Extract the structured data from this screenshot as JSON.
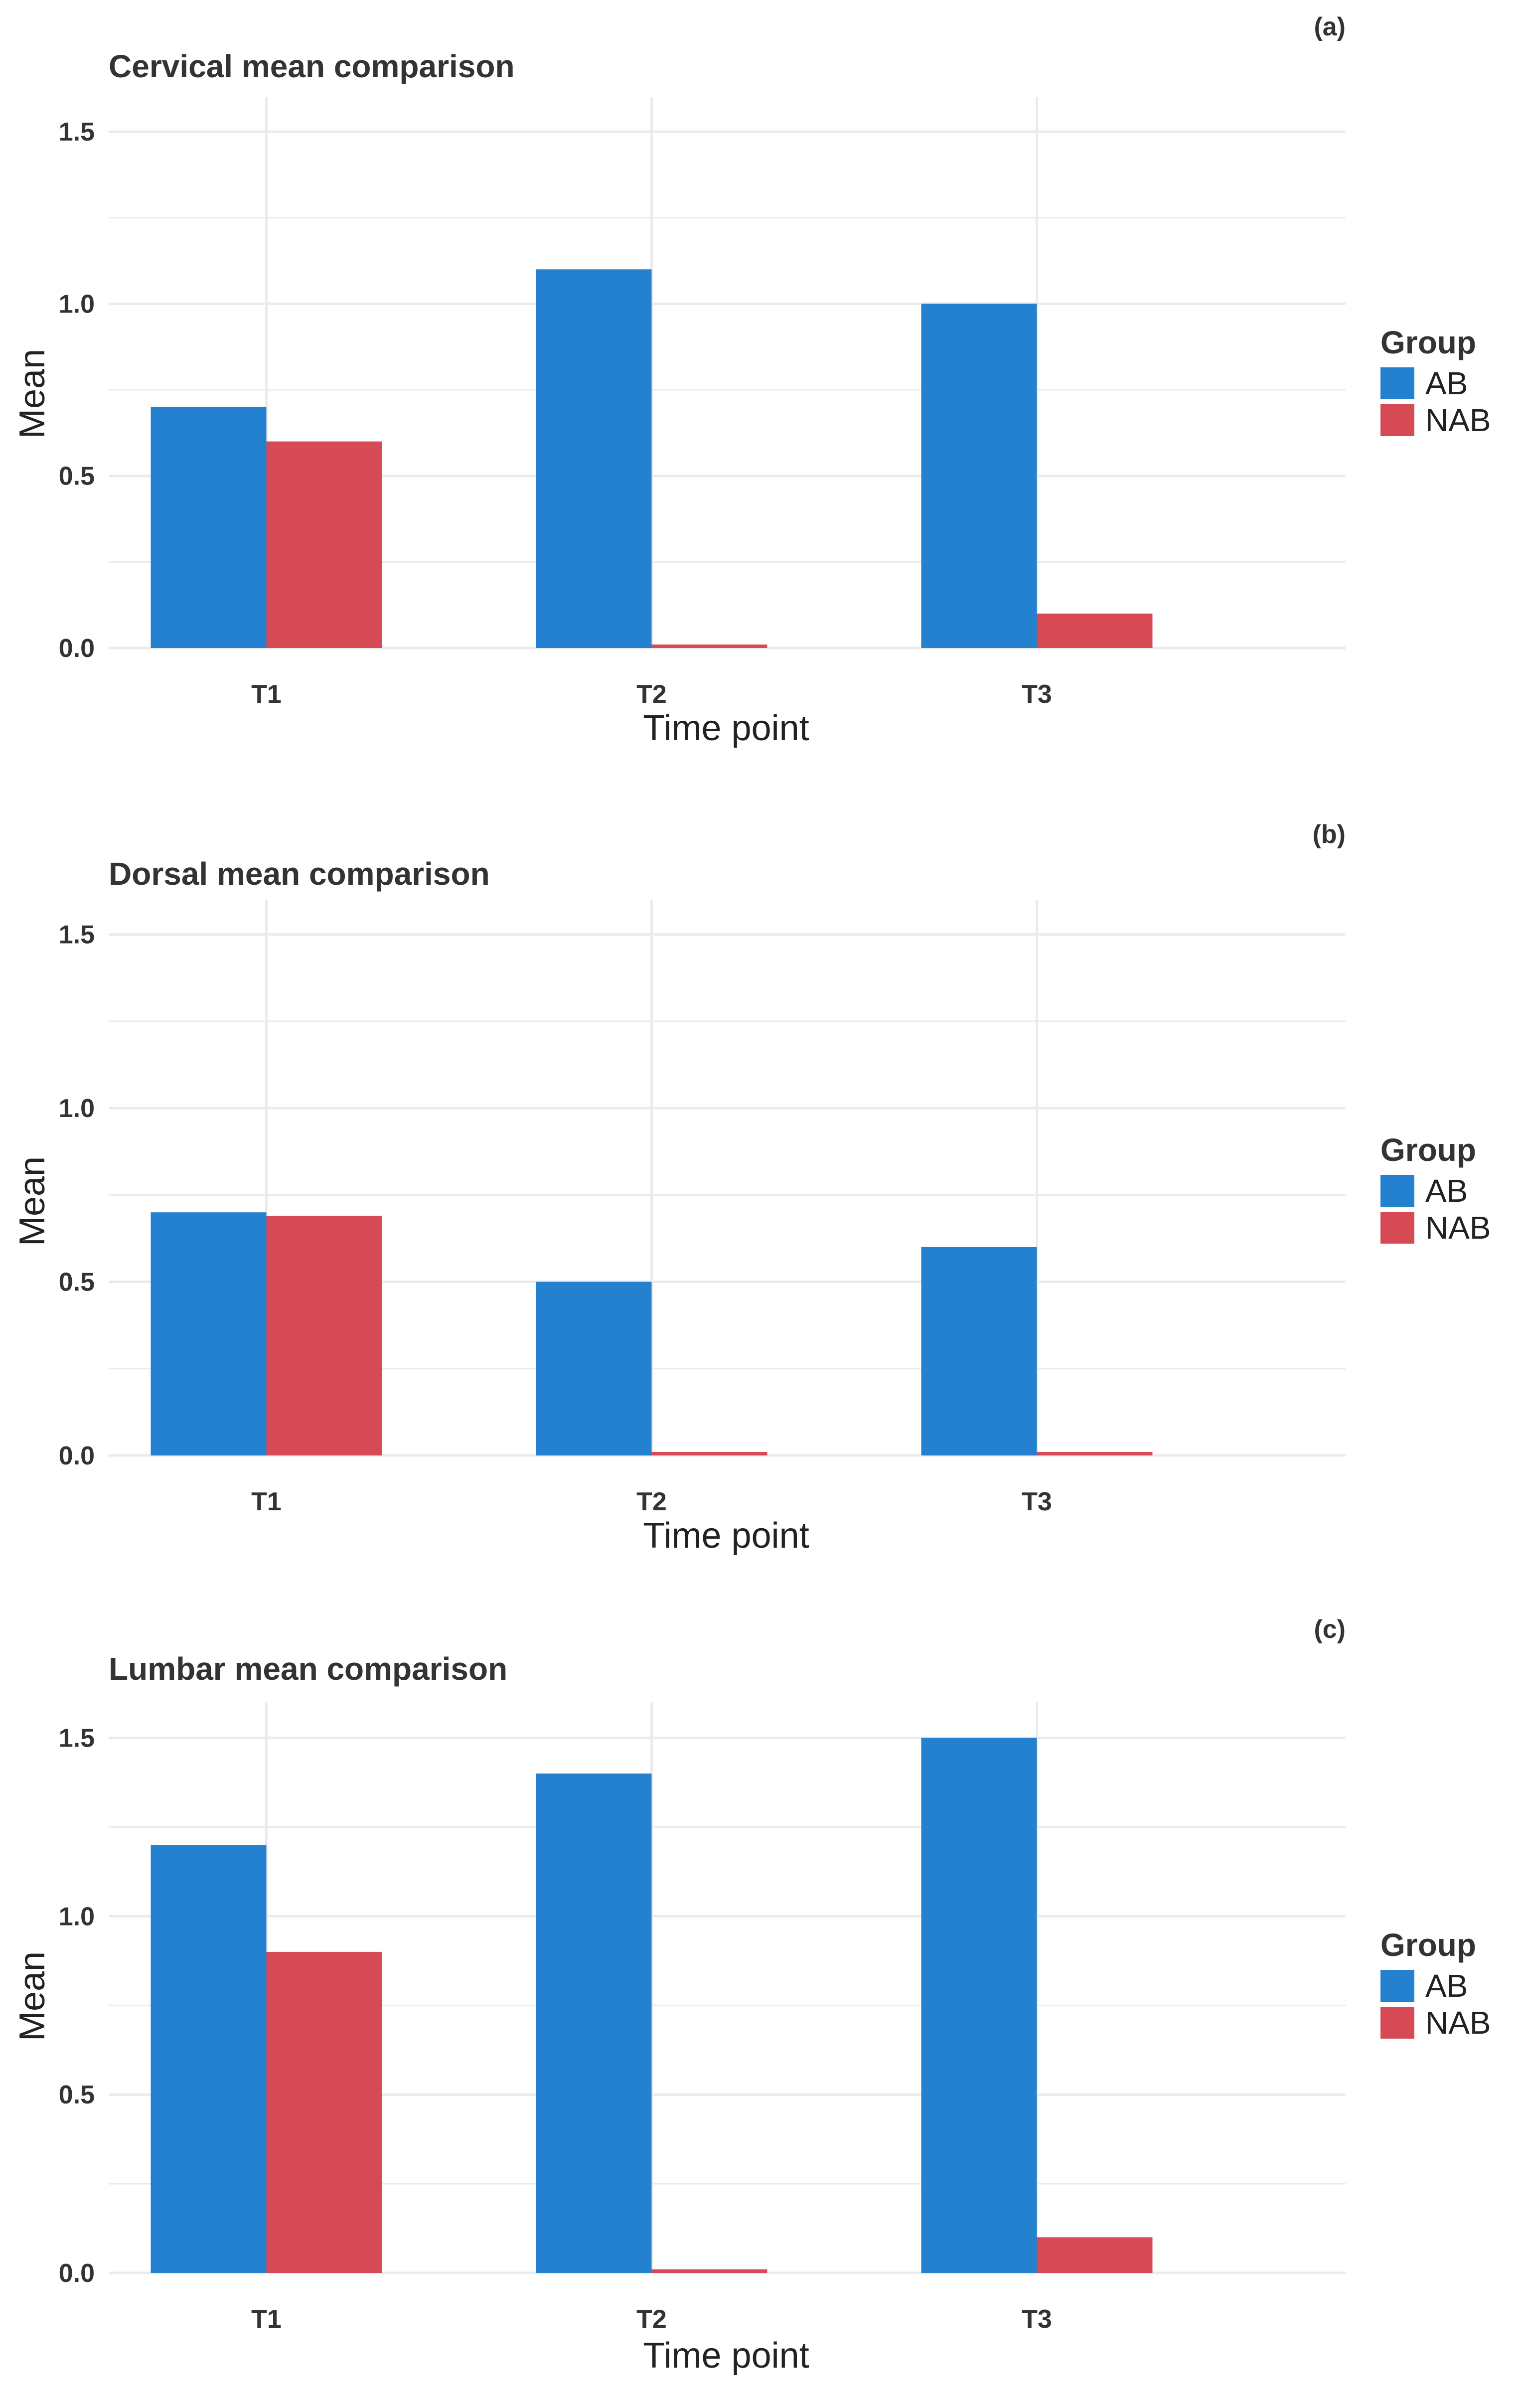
{
  "chart_data": [
    {
      "type": "bar",
      "panel_label": "(a)",
      "title": "Cervical mean comparison",
      "xlabel": "Time point",
      "ylabel": "Mean",
      "categories": [
        "T1",
        "T2",
        "T3"
      ],
      "series": [
        {
          "name": "AB",
          "values": [
            0.7,
            1.1,
            1.0
          ]
        },
        {
          "name": "NAB",
          "values": [
            0.6,
            0.01,
            0.1
          ]
        }
      ],
      "ylim": [
        0,
        1.6
      ],
      "yticks": [
        "0.0",
        "0.5",
        "1.0",
        "1.5"
      ],
      "legend_title": "Group",
      "legend_position": "right",
      "grid": true
    },
    {
      "type": "bar",
      "panel_label": "(b)",
      "title": "Dorsal mean comparison",
      "xlabel": "Time point",
      "ylabel": "Mean",
      "categories": [
        "T1",
        "T2",
        "T3"
      ],
      "series": [
        {
          "name": "AB",
          "values": [
            0.7,
            0.5,
            0.6
          ]
        },
        {
          "name": "NAB",
          "values": [
            0.69,
            0.01,
            0.01
          ]
        }
      ],
      "ylim": [
        0,
        1.6
      ],
      "yticks": [
        "0.0",
        "0.5",
        "1.0",
        "1.5"
      ],
      "legend_title": "Group",
      "legend_position": "right",
      "grid": true
    },
    {
      "type": "bar",
      "panel_label": "(c)",
      "title": "Lumbar mean comparison",
      "xlabel": "Time point",
      "ylabel": "Mean",
      "categories": [
        "T1",
        "T2",
        "T3"
      ],
      "series": [
        {
          "name": "AB",
          "values": [
            1.2,
            1.4,
            1.5
          ]
        },
        {
          "name": "NAB",
          "values": [
            0.9,
            0.01,
            0.1
          ]
        }
      ],
      "ylim": [
        0,
        1.6
      ],
      "yticks": [
        "0.0",
        "0.5",
        "1.0",
        "1.5"
      ],
      "legend_title": "Group",
      "legend_position": "right",
      "grid": true
    }
  ],
  "colors": {
    "AB": "#2381cf",
    "NAB": "#d64a55",
    "grid": "#ebebeb",
    "axis_text": "#333333"
  }
}
